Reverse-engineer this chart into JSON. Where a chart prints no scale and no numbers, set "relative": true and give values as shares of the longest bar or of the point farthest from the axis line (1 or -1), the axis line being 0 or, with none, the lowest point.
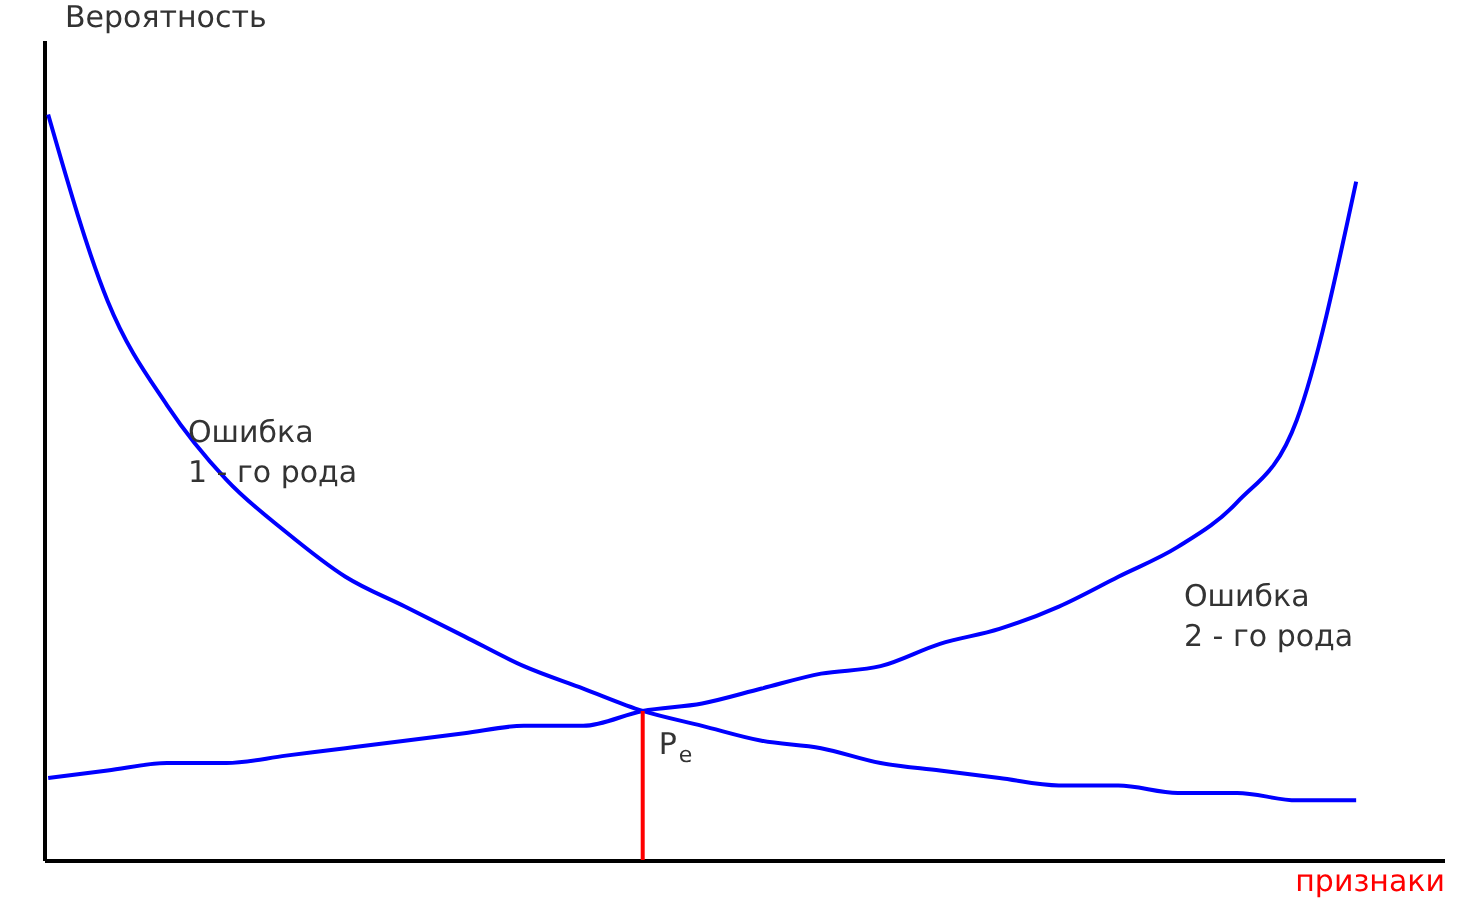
{
  "chart_data": {
    "type": "line",
    "relative": true,
    "ylabel": "Вероятность",
    "xlabel": "признаки",
    "categories": [
      null,
      null,
      null,
      null,
      null,
      null,
      null,
      null,
      null,
      null,
      null,
      null,
      null,
      null,
      null,
      null,
      null,
      null,
      null,
      null,
      null,
      null,
      null
    ],
    "series": [
      {
        "color": "#0000ff",
        "values": [
          1.0,
          0.75,
          0.61,
          0.51,
          0.44,
          0.38,
          0.34,
          0.3,
          0.26,
          0.23,
          0.2,
          0.18,
          0.16,
          0.15,
          0.13,
          0.12,
          0.11,
          0.1,
          0.1,
          0.09,
          0.09,
          0.08,
          0.08
        ]
      },
      {
        "color": "#0000ff",
        "values": [
          0.11,
          0.12,
          0.13,
          0.13,
          0.14,
          0.15,
          0.16,
          0.17,
          0.18,
          0.18,
          0.2,
          0.21,
          0.23,
          0.25,
          0.26,
          0.29,
          0.31,
          0.34,
          0.38,
          0.42,
          0.48,
          0.59,
          0.91
        ]
      }
    ],
    "annotations": [
      "Ошибка\n1 - го рода",
      "Ошибка\n2 - го рода",
      {
        "text": "P$_{e}$",
        "y": 0.2
      }
    ],
    "legend": false,
    "grid": false,
    "marker": "none",
    "line_style": "solid",
    "tick_labels": false
  }
}
